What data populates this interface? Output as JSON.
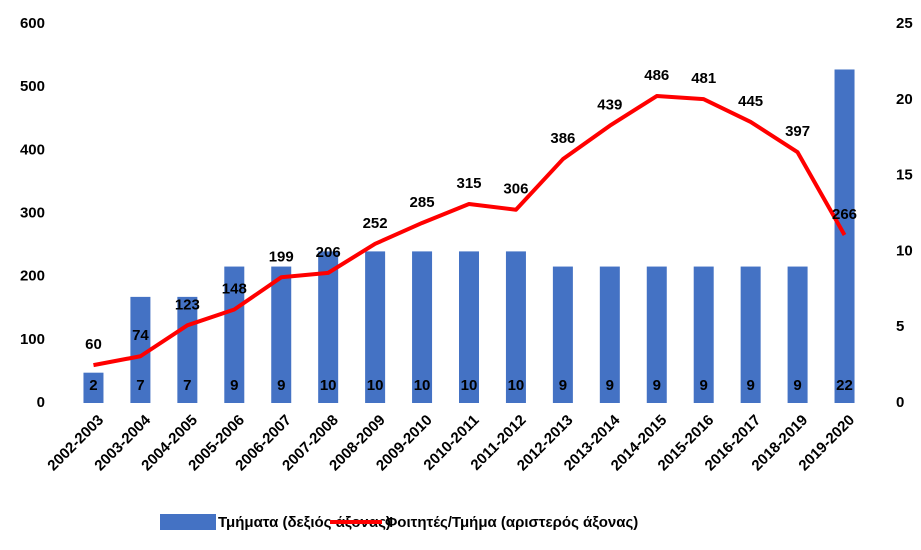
{
  "chart_data": {
    "type": "bar-line",
    "categories": [
      "2002-2003",
      "2003-2004",
      "2004-2005",
      "2005-2006",
      "2006-2007",
      "2007-2008",
      "2008-2009",
      "2009-2010",
      "2010-2011",
      "2011-2012",
      "2012-2013",
      "2013-2014",
      "2014-2015",
      "2015-2016",
      "2016-2017",
      "2018-2019",
      "2019-2020"
    ],
    "series": [
      {
        "name": "Τμήματα (δεξιός άξονας)",
        "type": "bar",
        "axis": "y2",
        "color": "#4472c4",
        "values": [
          2,
          7,
          7,
          9,
          9,
          10,
          10,
          10,
          10,
          10,
          9,
          9,
          9,
          9,
          9,
          9,
          22
        ]
      },
      {
        "name": "Φοιτητές/Τμήμα (αριστερός άξονας)",
        "type": "line",
        "color": "#ff0000",
        "values": [
          60,
          74,
          123,
          148,
          199,
          206,
          252,
          285,
          315,
          306,
          386,
          439,
          486,
          481,
          445,
          397,
          266
        ]
      }
    ],
    "ylim": [
      0,
      600
    ],
    "yticks": [
      0,
      100,
      200,
      300,
      400,
      500,
      600
    ],
    "y2lim": [
      0,
      25
    ],
    "y2ticks": [
      0,
      5,
      10,
      15,
      20,
      25
    ],
    "legend": "bottom"
  }
}
